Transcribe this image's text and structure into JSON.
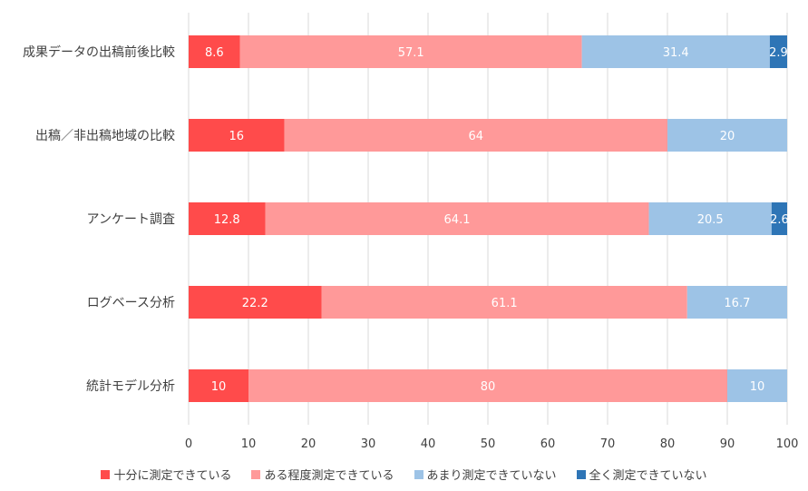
{
  "chart_data": {
    "type": "bar",
    "orientation": "horizontal",
    "stacked": true,
    "categories": [
      "成果データの出稿前後比較",
      "出稿／非出稿地域の比較",
      "アンケート調査",
      "ログベース分析",
      "統計モデル分析"
    ],
    "series": [
      {
        "name": "十分に測定できている",
        "color": "#ff4b4b",
        "values": [
          8.6,
          16,
          12.8,
          22.2,
          10
        ]
      },
      {
        "name": "ある程度測定できている",
        "color": "#ff9999",
        "values": [
          57.1,
          64,
          64.1,
          61.1,
          80
        ]
      },
      {
        "name": "あまり測定できていない",
        "color": "#9dc3e6",
        "values": [
          31.4,
          20,
          20.5,
          16.7,
          10
        ]
      },
      {
        "name": "全く測定できていない",
        "color": "#2e75b6",
        "values": [
          2.9,
          0,
          2.6,
          0,
          0
        ]
      }
    ],
    "xlim": [
      0,
      100
    ],
    "xticks": [
      0,
      10,
      20,
      30,
      40,
      50,
      60,
      70,
      80,
      90,
      100
    ],
    "grid": true,
    "legend": "bottom",
    "title": "",
    "xlabel": "",
    "ylabel": ""
  }
}
